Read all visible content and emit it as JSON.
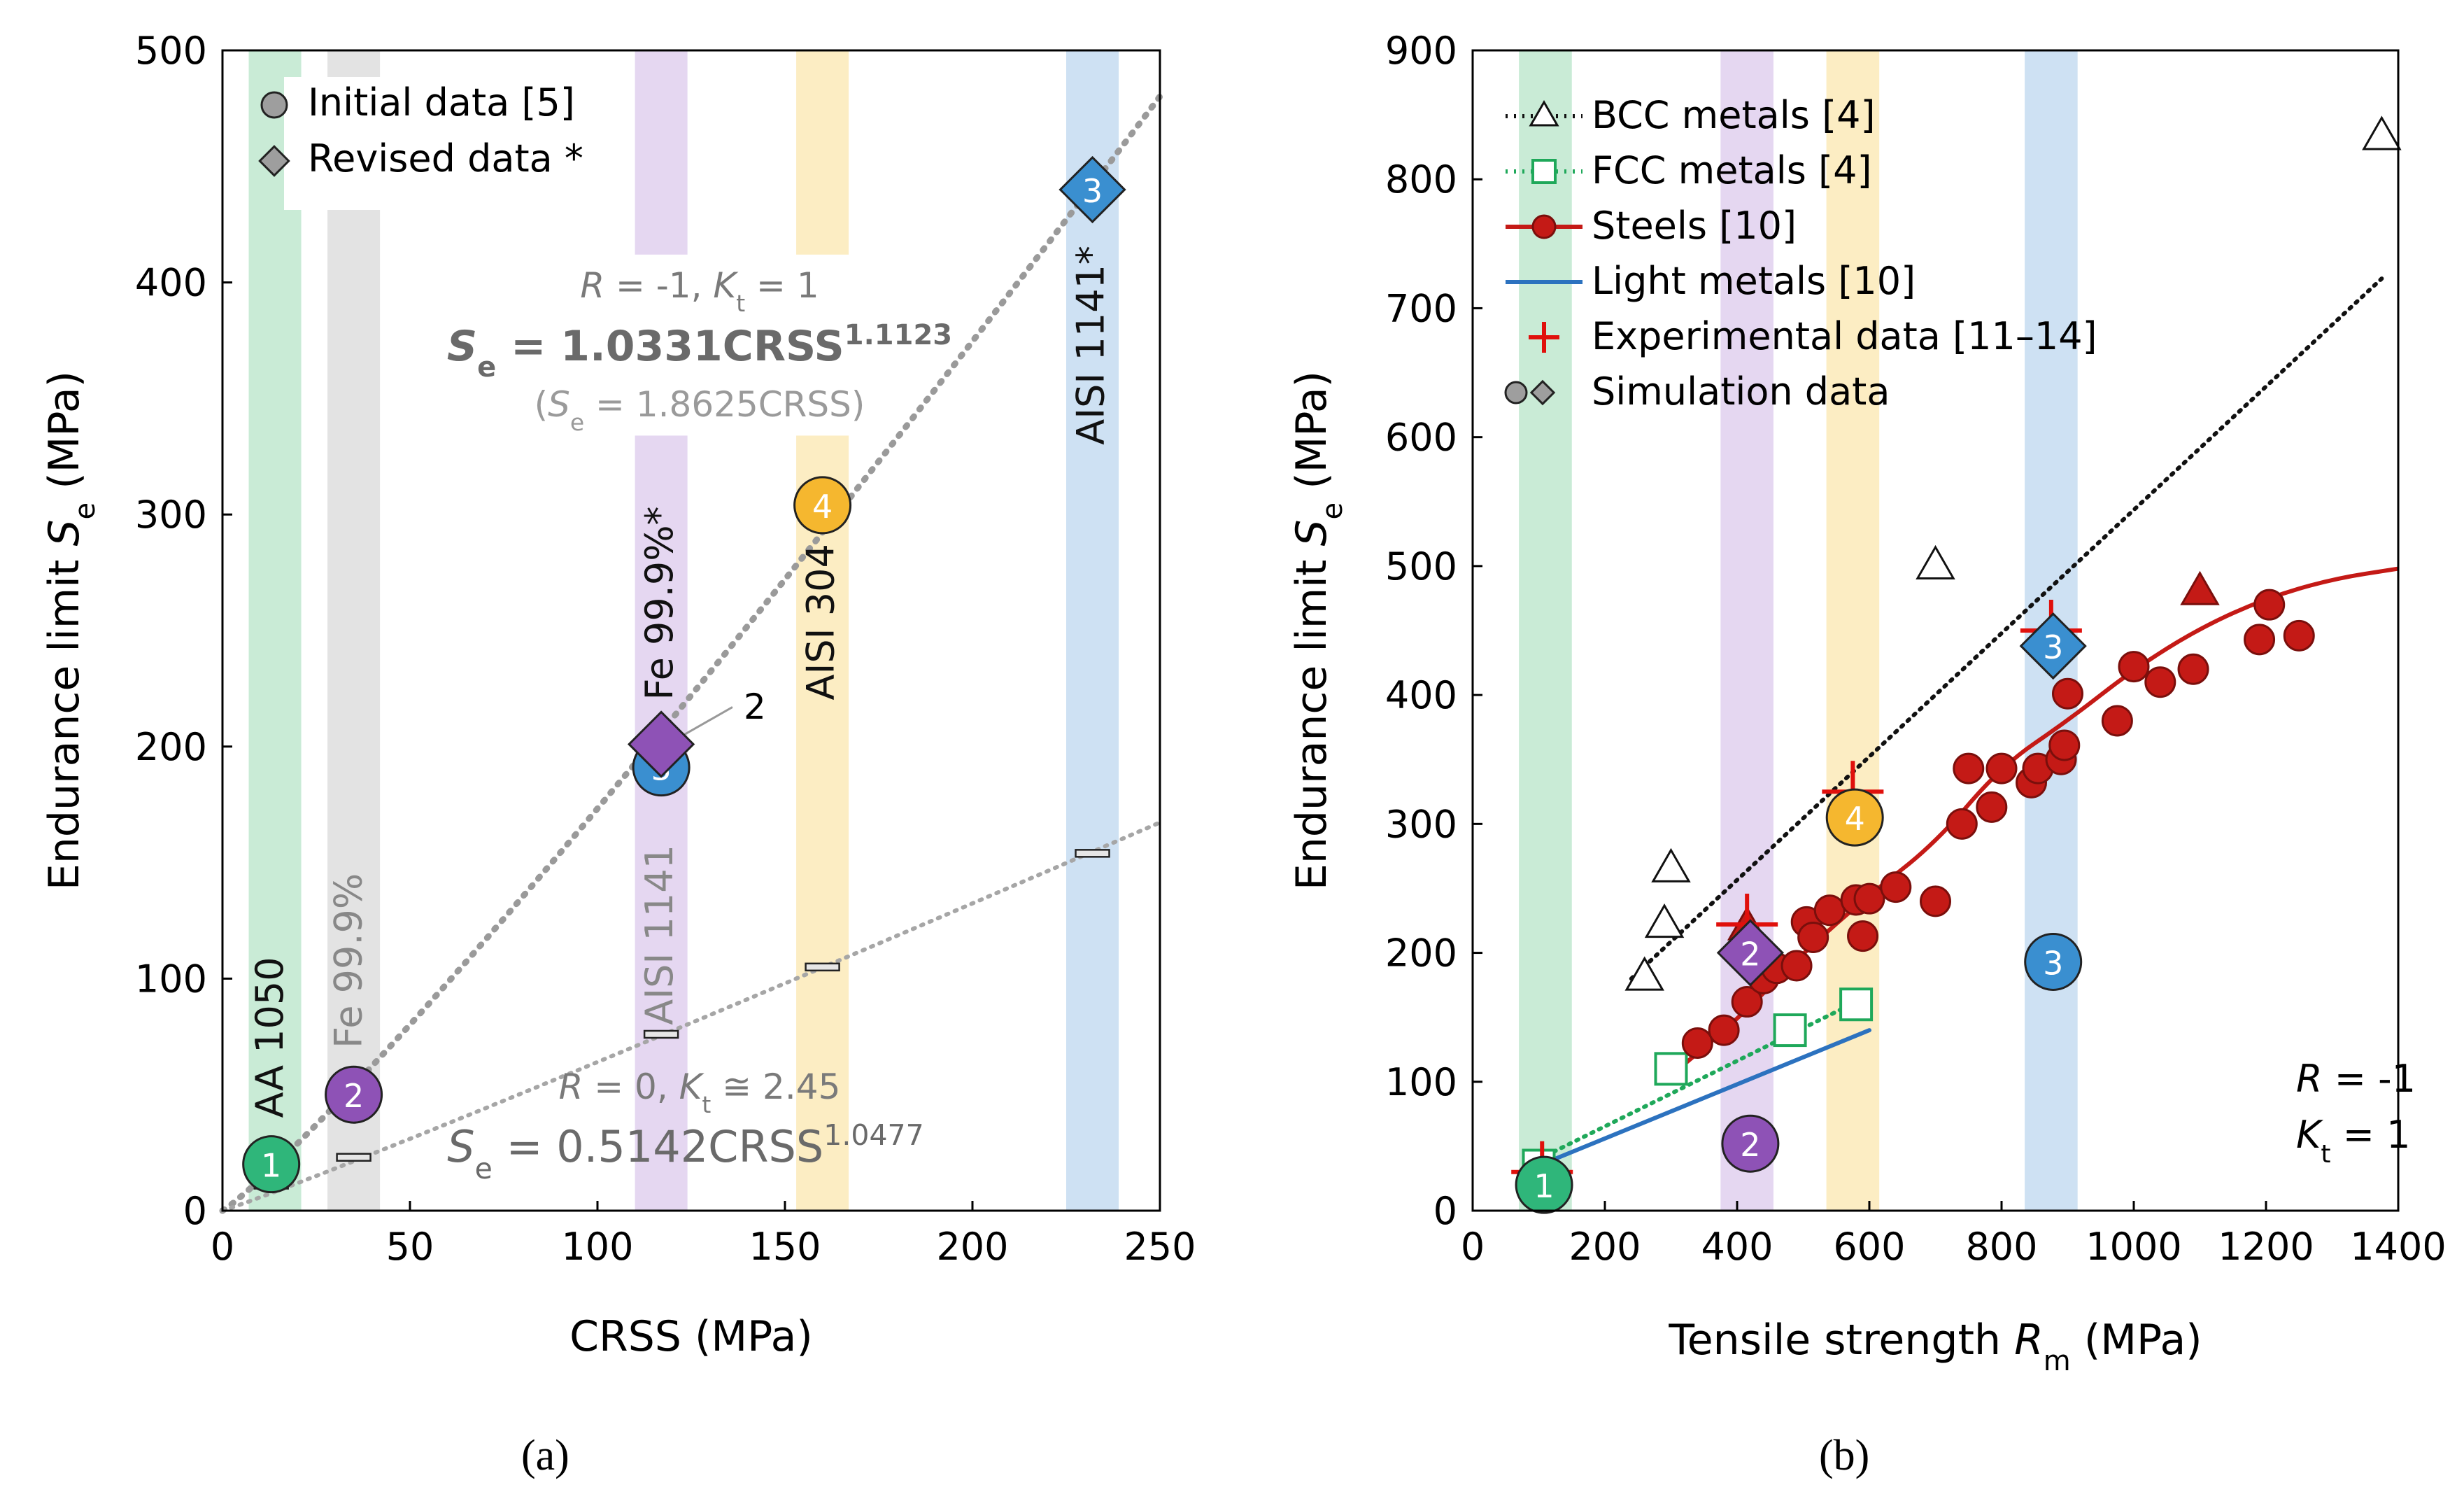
{
  "chart_data": [
    {
      "panel": "(a)",
      "type": "scatter",
      "xlabel": "CRSS (MPa)",
      "ylabel_main": "Endurance limit ",
      "ylabel_var": "S",
      "ylabel_sub": "e",
      "ylabel_unit": " (MPa)",
      "xlim": [
        0,
        250
      ],
      "ylim": [
        0,
        500
      ],
      "xticks": [
        0,
        50,
        100,
        150,
        200,
        250
      ],
      "yticks": [
        0,
        100,
        200,
        300,
        400,
        500
      ],
      "bands": [
        {
          "x0": 7,
          "x1": 21,
          "y0": 0,
          "y1": 500,
          "color": "#bfe8cf"
        },
        {
          "x0": 28,
          "x1": 42,
          "y0": 0,
          "y1": 500,
          "color": "#dedede"
        },
        {
          "x0": 110,
          "x1": 124,
          "y0": 412,
          "y1": 500,
          "color": "#e1d0ef"
        },
        {
          "x0": 110,
          "x1": 124,
          "y0": 0,
          "y1": 334,
          "color": "#e1d0ef"
        },
        {
          "x0": 153,
          "x1": 167,
          "y0": 412,
          "y1": 500,
          "color": "#fbeab8"
        },
        {
          "x0": 153,
          "x1": 167,
          "y0": 0,
          "y1": 334,
          "color": "#fbeab8"
        },
        {
          "x0": 225,
          "x1": 239,
          "y0": 0,
          "y1": 500,
          "color": "#c6dcf1"
        }
      ],
      "band_labels": [
        {
          "text": "AA 1050",
          "x": 16,
          "y": 40,
          "color": "#111111"
        },
        {
          "text": "Fe 99.9%",
          "x": 37,
          "y": 70,
          "color": "#888888"
        },
        {
          "text": "AISI 1141",
          "x": 120,
          "y": 80,
          "color": "#888888"
        },
        {
          "text": "Fe 99.9%*",
          "x": 120,
          "y": 220,
          "color": "#111111"
        },
        {
          "text": "AISI 304",
          "x": 163,
          "y": 220,
          "color": "#111111"
        },
        {
          "text": "AISI 1141*",
          "x": 235,
          "y": 330,
          "color": "#111111"
        }
      ],
      "legend": [
        {
          "label": "Initial data [5]",
          "marker": "circle"
        },
        {
          "label": "Revised data *",
          "marker": "diamond"
        }
      ],
      "series": [
        {
          "name": "Initial data [5]",
          "marker": "circle",
          "points": [
            {
              "x": 13,
              "y": 20,
              "id": "1",
              "color": "#2fb67a"
            },
            {
              "x": 35,
              "y": 50,
              "id": "2",
              "color": "#8e52b6"
            },
            {
              "x": 117,
              "y": 191,
              "id": "3",
              "color": "#3a8fd0"
            },
            {
              "x": 160,
              "y": 304,
              "id": "4",
              "color": "#f5b72f"
            }
          ]
        },
        {
          "name": "Revised data *",
          "marker": "diamond",
          "points": [
            {
              "x": 117,
              "y": 201,
              "id": "",
              "color": "#8e52b6"
            },
            {
              "x": 232,
              "y": 440,
              "id": "3",
              "color": "#3a8fd0"
            }
          ]
        }
      ],
      "small_marks": [
        {
          "x": 13,
          "y": 11
        },
        {
          "x": 35,
          "y": 23
        },
        {
          "x": 117,
          "y": 76
        },
        {
          "x": 160,
          "y": 105
        },
        {
          "x": 232,
          "y": 154
        }
      ],
      "fits": [
        {
          "name": "R = -1, Kt = 1",
          "a": 1.0331,
          "b": 1.1123,
          "x_from": 0,
          "x_to": 250,
          "style": "thick"
        },
        {
          "name": "R = 0, Kt = 2.45",
          "a": 0.5142,
          "b": 1.0477,
          "x_from": 0,
          "x_to": 250,
          "style": "thin"
        }
      ],
      "annotations": {
        "cond1": "R = -1, Kt = 1",
        "eq1": "Se = 1.0331CRSS1.1123",
        "eq1_alt": "(Se = 1.8625CRSS)",
        "cond2": "R = 0, Kt ≅ 2.45",
        "eq2": "Se = 0.5142CRSS1.0477",
        "callout": "2"
      }
    },
    {
      "panel": "(b)",
      "type": "scatter",
      "xlabel_main": "Tensile strength ",
      "xlabel_var": "R",
      "xlabel_sub": "m",
      "xlabel_unit": " (MPa)",
      "ylabel_main": "Endurance limit ",
      "ylabel_var": "S",
      "ylabel_sub": "e",
      "ylabel_unit": " (MPa)",
      "xlim": [
        0,
        1400
      ],
      "ylim": [
        0,
        900
      ],
      "xticks": [
        0,
        200,
        400,
        600,
        800,
        1000,
        1200,
        1400
      ],
      "yticks": [
        0,
        100,
        200,
        300,
        400,
        500,
        600,
        700,
        800,
        900
      ],
      "bands": [
        {
          "x0": 70,
          "x1": 150,
          "y0": 0,
          "y1": 900,
          "color": "#bfe8cf"
        },
        {
          "x0": 375,
          "x1": 455,
          "y0": 0,
          "y1": 900,
          "color": "#e1d0ef"
        },
        {
          "x0": 535,
          "x1": 615,
          "y0": 0,
          "y1": 900,
          "color": "#fbeab8"
        },
        {
          "x0": 835,
          "x1": 915,
          "y0": 0,
          "y1": 900,
          "color": "#c6dcf1"
        }
      ],
      "legend": [
        {
          "label": "BCC metals [4]",
          "style": "bcc"
        },
        {
          "label": "FCC metals [4]",
          "style": "fcc"
        },
        {
          "label": "Steels [10]",
          "style": "steel"
        },
        {
          "label": "Light metals [10]",
          "style": "light"
        },
        {
          "label": "Experimental data [11–14]",
          "style": "exp"
        },
        {
          "label": "Simulation data",
          "style": "sim"
        }
      ],
      "series": [
        {
          "name": "BCC metals [4]",
          "marker": "triangle-open",
          "points": [
            [
              260,
              181
            ],
            [
              290,
              222
            ],
            [
              300,
              265
            ],
            [
              700,
              500
            ],
            [
              1375,
              833
            ]
          ]
        },
        {
          "name": "BCC metals [4] (filled)",
          "marker": "triangle-red",
          "points": [
            [
              415,
              220
            ],
            [
              1100,
              480
            ]
          ]
        },
        {
          "name": "FCC metals [4]",
          "marker": "square-open",
          "points": [
            [
              100,
              35
            ],
            [
              300,
              110
            ],
            [
              480,
              140
            ],
            [
              580,
              160
            ]
          ]
        },
        {
          "name": "Steels [10]",
          "marker": "circle-red",
          "points": [
            [
              340,
              130
            ],
            [
              380,
              140
            ],
            [
              415,
              162
            ],
            [
              440,
              180
            ],
            [
              460,
              188
            ],
            [
              490,
              190
            ],
            [
              505,
              224
            ],
            [
              515,
              212
            ],
            [
              540,
              233
            ],
            [
              580,
              241
            ],
            [
              590,
              213
            ],
            [
              600,
              242
            ],
            [
              640,
              251
            ],
            [
              700,
              240
            ],
            [
              740,
              300
            ],
            [
              750,
              343
            ],
            [
              785,
              313
            ],
            [
              800,
              343
            ],
            [
              845,
              332
            ],
            [
              855,
              343
            ],
            [
              890,
              350
            ],
            [
              895,
              361
            ],
            [
              900,
              401
            ],
            [
              975,
              380
            ],
            [
              1000,
              422
            ],
            [
              1040,
              410
            ],
            [
              1090,
              420
            ],
            [
              1190,
              443
            ],
            [
              1205,
              470
            ],
            [
              1250,
              446
            ]
          ]
        },
        {
          "name": "Experimental data [11–14]",
          "marker": "plus",
          "points": [
            [
              105,
              30
            ],
            [
              415,
              222
            ],
            [
              575,
              325
            ],
            [
              875,
              450
            ]
          ]
        },
        {
          "name": "Simulation data",
          "marker": "sim",
          "points": [
            {
              "x": 108,
              "y": 20,
              "id": "1",
              "shape": "circle",
              "color": "#2fb67a"
            },
            {
              "x": 420,
              "y": 200,
              "id": "2",
              "shape": "diamond",
              "color": "#8e52b6"
            },
            {
              "x": 420,
              "y": 52,
              "id": "2",
              "shape": "circle",
              "color": "#8e52b6"
            },
            {
              "x": 578,
              "y": 305,
              "id": "4",
              "shape": "circle",
              "color": "#f5b72f"
            },
            {
              "x": 878,
              "y": 438,
              "id": "3",
              "shape": "diamond",
              "color": "#3a8fd0"
            },
            {
              "x": 878,
              "y": 193,
              "id": "3",
              "shape": "circle",
              "color": "#3a8fd0"
            }
          ]
        }
      ],
      "trends": [
        {
          "name": "BCC trend",
          "points": [
            [
              240,
              180
            ],
            [
              1375,
              723
            ]
          ]
        },
        {
          "name": "FCC trend",
          "points": [
            [
              100,
              40
            ],
            [
              600,
              167
            ]
          ]
        },
        {
          "name": "Light trend",
          "points": [
            [
              100,
              35
            ],
            [
              600,
              140
            ]
          ]
        },
        {
          "name": "Steel trend",
          "points": [
            [
              300,
              105
            ],
            [
              400,
              148
            ],
            [
              500,
              200
            ],
            [
              600,
              245
            ],
            [
              700,
              285
            ],
            [
              800,
              345
            ],
            [
              900,
              380
            ],
            [
              1000,
              420
            ],
            [
              1100,
              452
            ],
            [
              1200,
              475
            ],
            [
              1300,
              490
            ],
            [
              1400,
              498
            ]
          ]
        }
      ],
      "annotations": {
        "r_label": "R = -1",
        "kt_label": "Kt = 1"
      }
    }
  ],
  "captions": {
    "a": "(a)",
    "b": "(b)"
  },
  "colors": {
    "steel_red": "#c41a16",
    "edge_red": "#7a0f0c",
    "fcc_green": "#1fa85a",
    "light_blue": "#2c72bf",
    "fit_gray": "#9a9a9a",
    "axis": "#000000"
  }
}
